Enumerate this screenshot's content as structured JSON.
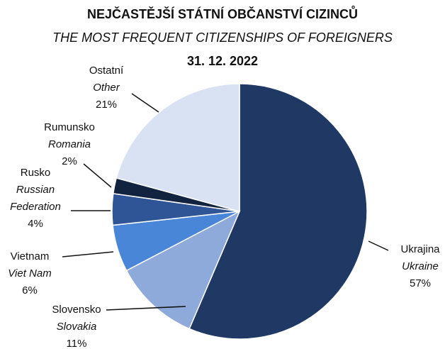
{
  "chart_data": {
    "type": "pie",
    "title": "NEJČASTĚJŠÍ STÁTNÍ OBČANSTVÍ CIZINCŮ",
    "subtitle": "THE MOST FREQUENT CITIZENSHIPS OF FOREIGNERS",
    "date": "31. 12. 2022",
    "categories": [
      "Ukrajina",
      "Slovensko",
      "Vietnam",
      "Rusko",
      "Rumunsko",
      "Ostatní"
    ],
    "categories_en": [
      "Ukraine",
      "Slovakia",
      "Viet Nam",
      "Russian Federation",
      "Romania",
      "Other"
    ],
    "values": [
      57,
      11,
      6,
      4,
      2,
      21
    ],
    "value_labels": [
      "57%",
      "11%",
      "6%",
      "4%",
      "2%",
      "21%"
    ],
    "colors": [
      "#1f3864",
      "#8eaadb",
      "#4a86d8",
      "#2f5597",
      "#11233f",
      "#d9e2f3"
    ]
  }
}
